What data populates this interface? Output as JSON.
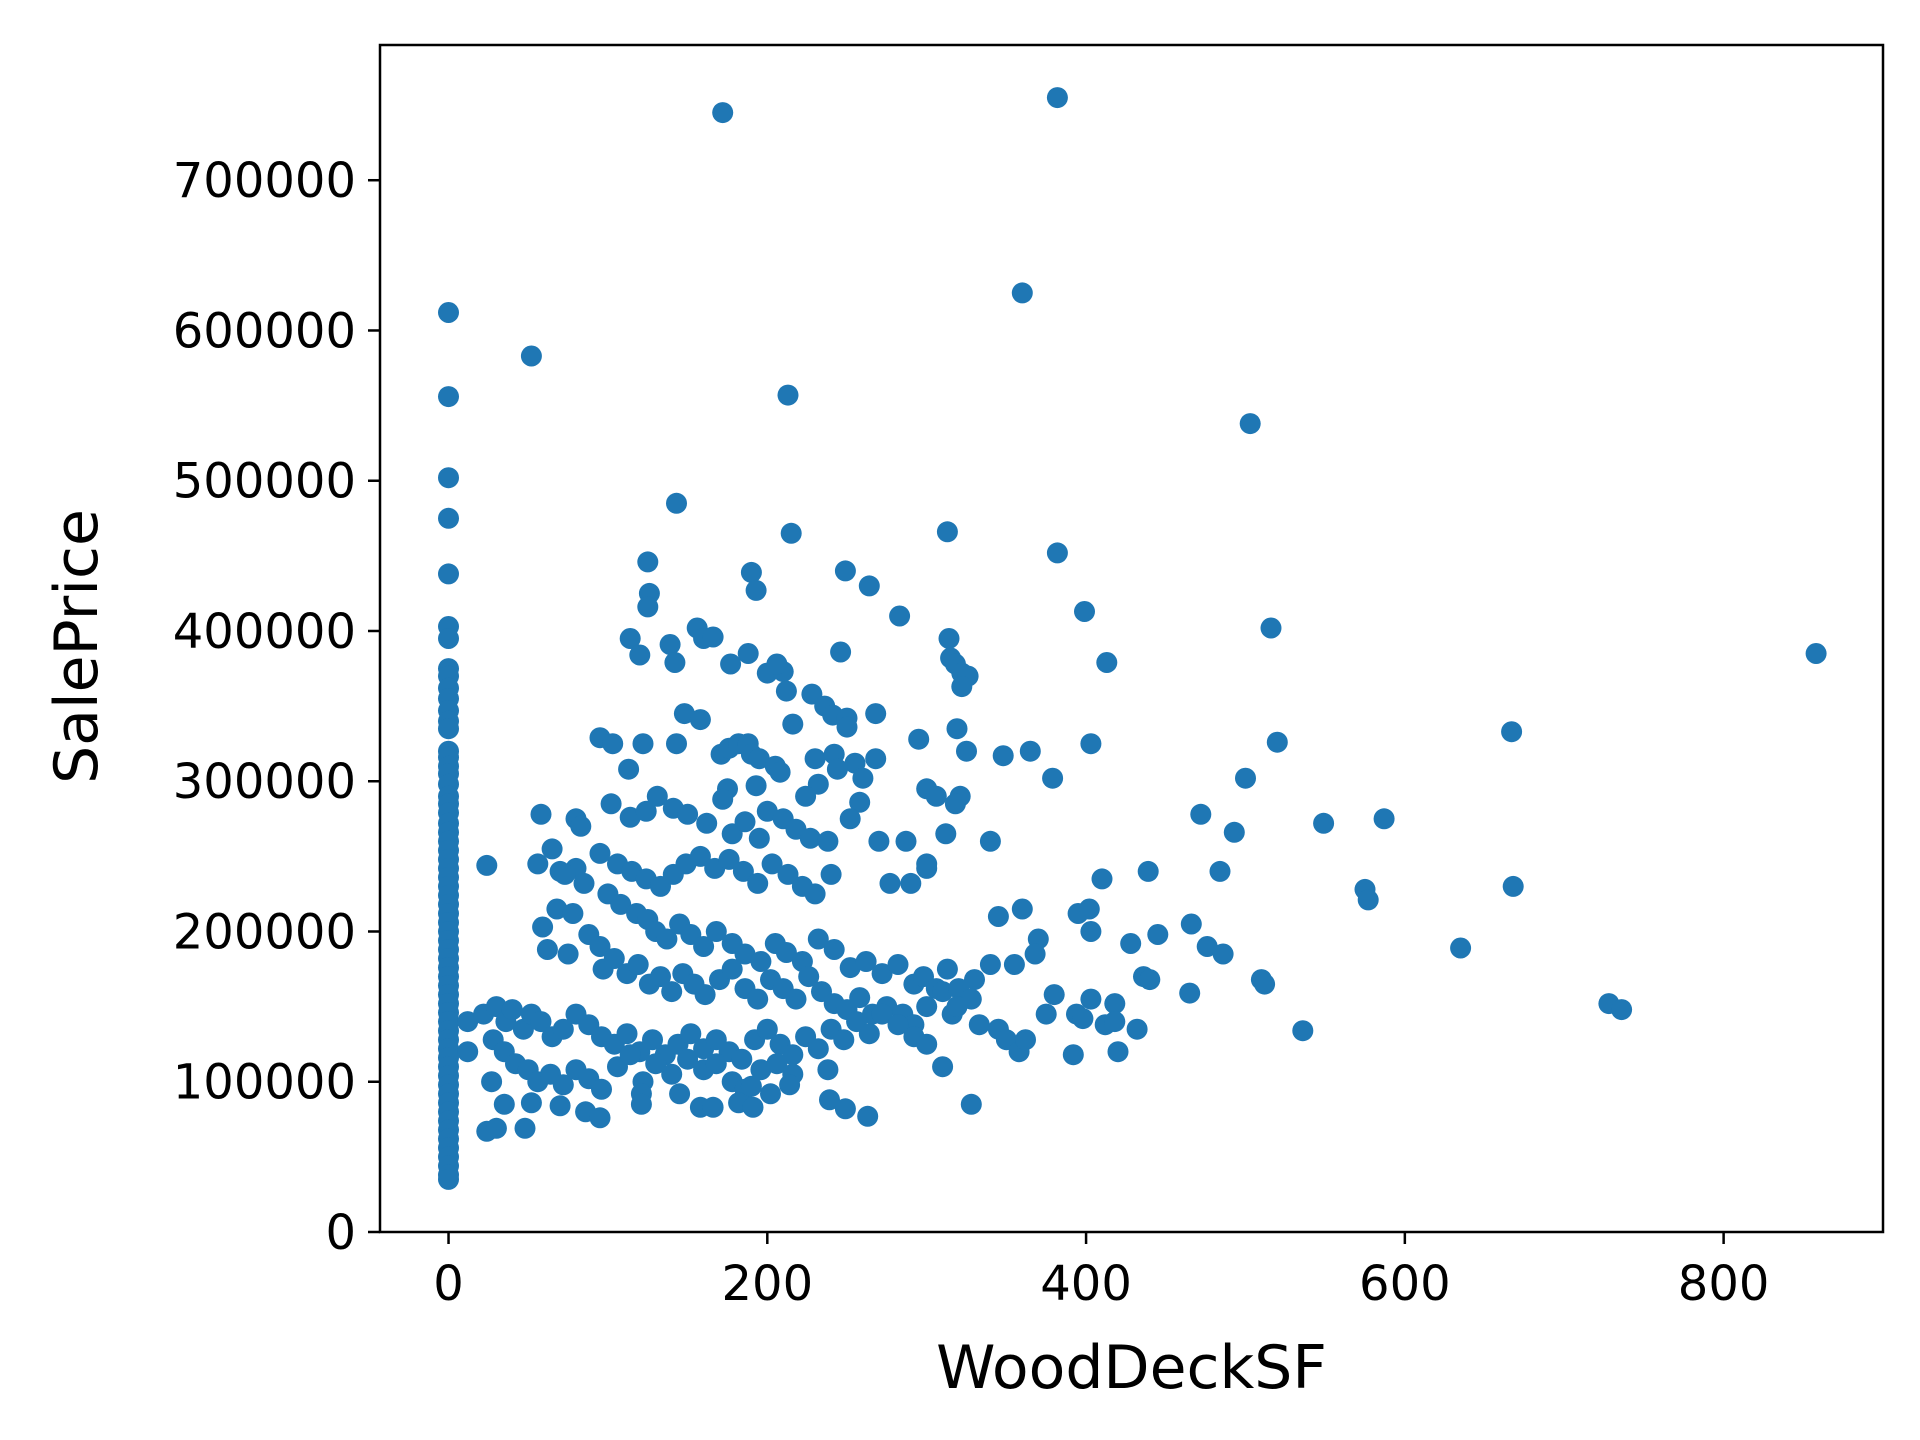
{
  "chart_data": {
    "type": "scatter",
    "title": "",
    "xlabel": "WoodDeckSF",
    "ylabel": "SalePrice",
    "xlim": [
      -43,
      900
    ],
    "ylim": [
      0,
      790000
    ],
    "xticks": [
      0,
      200,
      400,
      600,
      800
    ],
    "yticks": [
      0,
      100000,
      200000,
      300000,
      400000,
      500000,
      600000,
      700000
    ],
    "grid": false,
    "legend": "none",
    "color": "#1f77b4",
    "points": [
      [
        0,
        612000
      ],
      [
        0,
        556000
      ],
      [
        0,
        502000
      ],
      [
        0,
        475000
      ],
      [
        0,
        438000
      ],
      [
        0,
        403000
      ],
      [
        0,
        395000
      ],
      [
        0,
        375000
      ],
      [
        0,
        370000
      ],
      [
        0,
        362000
      ],
      [
        0,
        355000
      ],
      [
        0,
        347000
      ],
      [
        0,
        340000
      ],
      [
        0,
        335000
      ],
      [
        0,
        320000
      ],
      [
        0,
        316000
      ],
      [
        0,
        310000
      ],
      [
        0,
        305000
      ],
      [
        0,
        298000
      ],
      [
        0,
        290000
      ],
      [
        0,
        285000
      ],
      [
        0,
        279000
      ],
      [
        0,
        272000
      ],
      [
        0,
        266000
      ],
      [
        0,
        260000
      ],
      [
        0,
        254000
      ],
      [
        0,
        248000
      ],
      [
        0,
        242000
      ],
      [
        0,
        236000
      ],
      [
        0,
        230000
      ],
      [
        0,
        224000
      ],
      [
        0,
        218000
      ],
      [
        0,
        212000
      ],
      [
        0,
        206000
      ],
      [
        0,
        200000
      ],
      [
        0,
        194000
      ],
      [
        0,
        188000
      ],
      [
        0,
        182000
      ],
      [
        0,
        176000
      ],
      [
        0,
        170000
      ],
      [
        0,
        164000
      ],
      [
        0,
        158000
      ],
      [
        0,
        152000
      ],
      [
        0,
        146000
      ],
      [
        0,
        140000
      ],
      [
        0,
        134000
      ],
      [
        0,
        128000
      ],
      [
        0,
        122000
      ],
      [
        0,
        116000
      ],
      [
        0,
        110000
      ],
      [
        0,
        104000
      ],
      [
        0,
        98000
      ],
      [
        0,
        92000
      ],
      [
        0,
        86000
      ],
      [
        0,
        80000
      ],
      [
        0,
        74000
      ],
      [
        0,
        68000
      ],
      [
        0,
        62000
      ],
      [
        0,
        56000
      ],
      [
        0,
        50000
      ],
      [
        0,
        44000
      ],
      [
        0,
        38000
      ],
      [
        0,
        35000
      ],
      [
        172,
        745000
      ],
      [
        382,
        755000
      ],
      [
        360,
        625000
      ],
      [
        52,
        583000
      ],
      [
        213,
        557000
      ],
      [
        503,
        538000
      ],
      [
        143,
        485000
      ],
      [
        215,
        465000
      ],
      [
        313,
        466000
      ],
      [
        382,
        452000
      ],
      [
        125,
        446000
      ],
      [
        190,
        439000
      ],
      [
        249,
        440000
      ],
      [
        264,
        430000
      ],
      [
        126,
        425000
      ],
      [
        193,
        427000
      ],
      [
        125,
        416000
      ],
      [
        283,
        410000
      ],
      [
        399,
        413000
      ],
      [
        516,
        402000
      ],
      [
        114,
        395000
      ],
      [
        139,
        391000
      ],
      [
        120,
        384000
      ],
      [
        142,
        379000
      ],
      [
        156,
        402000
      ],
      [
        160,
        395000
      ],
      [
        166,
        396000
      ],
      [
        177,
        378000
      ],
      [
        188,
        385000
      ],
      [
        200,
        372000
      ],
      [
        210,
        373000
      ],
      [
        206,
        378000
      ],
      [
        212,
        360000
      ],
      [
        228,
        358000
      ],
      [
        314,
        395000
      ],
      [
        315,
        382000
      ],
      [
        318,
        378000
      ],
      [
        322,
        372000
      ],
      [
        326,
        370000
      ],
      [
        322,
        363000
      ],
      [
        413,
        379000
      ],
      [
        858,
        385000
      ],
      [
        246,
        386000
      ],
      [
        148,
        345000
      ],
      [
        158,
        341000
      ],
      [
        236,
        350000
      ],
      [
        241,
        344000
      ],
      [
        250,
        342000
      ],
      [
        250,
        336000
      ],
      [
        268,
        345000
      ],
      [
        216,
        338000
      ],
      [
        319,
        335000
      ],
      [
        295,
        328000
      ],
      [
        325,
        320000
      ],
      [
        348,
        317000
      ],
      [
        365,
        320000
      ],
      [
        403,
        325000
      ],
      [
        379,
        302000
      ],
      [
        500,
        302000
      ],
      [
        520,
        326000
      ],
      [
        667,
        333000
      ],
      [
        95,
        329000
      ],
      [
        103,
        325000
      ],
      [
        113,
        308000
      ],
      [
        122,
        325000
      ],
      [
        143,
        325000
      ],
      [
        171,
        318000
      ],
      [
        176,
        322000
      ],
      [
        182,
        325000
      ],
      [
        188,
        325000
      ],
      [
        190,
        318000
      ],
      [
        195,
        315000
      ],
      [
        205,
        310000
      ],
      [
        208,
        306000
      ],
      [
        230,
        315000
      ],
      [
        242,
        318000
      ],
      [
        255,
        312000
      ],
      [
        260,
        302000
      ],
      [
        268,
        315000
      ],
      [
        244,
        308000
      ],
      [
        193,
        297000
      ],
      [
        175,
        295000
      ],
      [
        172,
        288000
      ],
      [
        232,
        298000
      ],
      [
        224,
        290000
      ],
      [
        300,
        295000
      ],
      [
        306,
        290000
      ],
      [
        321,
        290000
      ],
      [
        318,
        285000
      ],
      [
        258,
        286000
      ],
      [
        252,
        275000
      ],
      [
        270,
        260000
      ],
      [
        300,
        245000
      ],
      [
        287,
        260000
      ],
      [
        312,
        265000
      ],
      [
        340,
        260000
      ],
      [
        472,
        278000
      ],
      [
        493,
        266000
      ],
      [
        549,
        272000
      ],
      [
        587,
        275000
      ],
      [
        58,
        278000
      ],
      [
        80,
        275000
      ],
      [
        83,
        270000
      ],
      [
        102,
        285000
      ],
      [
        114,
        276000
      ],
      [
        124,
        280000
      ],
      [
        131,
        290000
      ],
      [
        141,
        282000
      ],
      [
        150,
        278000
      ],
      [
        162,
        272000
      ],
      [
        178,
        265000
      ],
      [
        186,
        273000
      ],
      [
        195,
        262000
      ],
      [
        200,
        280000
      ],
      [
        210,
        275000
      ],
      [
        218,
        268000
      ],
      [
        227,
        262000
      ],
      [
        238,
        260000
      ],
      [
        65,
        255000
      ],
      [
        70,
        240000
      ],
      [
        80,
        242000
      ],
      [
        95,
        252000
      ],
      [
        106,
        245000
      ],
      [
        115,
        240000
      ],
      [
        124,
        235000
      ],
      [
        133,
        230000
      ],
      [
        141,
        238000
      ],
      [
        149,
        245000
      ],
      [
        158,
        250000
      ],
      [
        167,
        242000
      ],
      [
        176,
        248000
      ],
      [
        185,
        240000
      ],
      [
        194,
        232000
      ],
      [
        203,
        245000
      ],
      [
        213,
        238000
      ],
      [
        222,
        230000
      ],
      [
        230,
        225000
      ],
      [
        240,
        238000
      ],
      [
        290,
        232000
      ],
      [
        277,
        232000
      ],
      [
        300,
        242000
      ],
      [
        410,
        235000
      ],
      [
        439,
        240000
      ],
      [
        484,
        240000
      ],
      [
        575,
        228000
      ],
      [
        577,
        221000
      ],
      [
        668,
        230000
      ],
      [
        24,
        244000
      ],
      [
        56,
        245000
      ],
      [
        73,
        238000
      ],
      [
        85,
        232000
      ],
      [
        100,
        225000
      ],
      [
        108,
        218000
      ],
      [
        118,
        212000
      ],
      [
        125,
        208000
      ],
      [
        130,
        200000
      ],
      [
        137,
        195000
      ],
      [
        145,
        205000
      ],
      [
        152,
        198000
      ],
      [
        160,
        190000
      ],
      [
        168,
        200000
      ],
      [
        178,
        192000
      ],
      [
        186,
        185000
      ],
      [
        196,
        180000
      ],
      [
        205,
        192000
      ],
      [
        212,
        186000
      ],
      [
        222,
        180000
      ],
      [
        232,
        195000
      ],
      [
        242,
        188000
      ],
      [
        252,
        176000
      ],
      [
        262,
        180000
      ],
      [
        272,
        172000
      ],
      [
        282,
        178000
      ],
      [
        292,
        165000
      ],
      [
        298,
        170000
      ],
      [
        306,
        162000
      ],
      [
        313,
        175000
      ],
      [
        330,
        168000
      ],
      [
        345,
        210000
      ],
      [
        360,
        215000
      ],
      [
        370,
        195000
      ],
      [
        395,
        212000
      ],
      [
        402,
        215000
      ],
      [
        403,
        200000
      ],
      [
        428,
        192000
      ],
      [
        445,
        198000
      ],
      [
        466,
        205000
      ],
      [
        476,
        190000
      ],
      [
        486,
        185000
      ],
      [
        635,
        189000
      ],
      [
        59,
        203000
      ],
      [
        62,
        188000
      ],
      [
        75,
        185000
      ],
      [
        68,
        215000
      ],
      [
        78,
        212000
      ],
      [
        88,
        198000
      ],
      [
        95,
        190000
      ],
      [
        97,
        175000
      ],
      [
        104,
        182000
      ],
      [
        112,
        172000
      ],
      [
        119,
        178000
      ],
      [
        126,
        165000
      ],
      [
        133,
        170000
      ],
      [
        140,
        160000
      ],
      [
        147,
        172000
      ],
      [
        154,
        165000
      ],
      [
        161,
        158000
      ],
      [
        170,
        168000
      ],
      [
        178,
        175000
      ],
      [
        186,
        162000
      ],
      [
        194,
        155000
      ],
      [
        202,
        168000
      ],
      [
        210,
        162000
      ],
      [
        218,
        155000
      ],
      [
        226,
        170000
      ],
      [
        234,
        160000
      ],
      [
        242,
        152000
      ],
      [
        250,
        148000
      ],
      [
        258,
        156000
      ],
      [
        266,
        145000
      ],
      [
        275,
        150000
      ],
      [
        285,
        145000
      ],
      [
        292,
        138000
      ],
      [
        300,
        150000
      ],
      [
        310,
        160000
      ],
      [
        320,
        162000
      ],
      [
        328,
        155000
      ],
      [
        340,
        178000
      ],
      [
        355,
        178000
      ],
      [
        368,
        185000
      ],
      [
        375,
        145000
      ],
      [
        380,
        158000
      ],
      [
        394,
        145000
      ],
      [
        403,
        155000
      ],
      [
        412,
        138000
      ],
      [
        418,
        152000
      ],
      [
        436,
        170000
      ],
      [
        440,
        168000
      ],
      [
        465,
        159000
      ],
      [
        510,
        168000
      ],
      [
        512,
        165000
      ],
      [
        536,
        134000
      ],
      [
        728,
        152000
      ],
      [
        736,
        148000
      ],
      [
        12,
        140000
      ],
      [
        22,
        145000
      ],
      [
        30,
        150000
      ],
      [
        36,
        140000
      ],
      [
        40,
        148000
      ],
      [
        47,
        135000
      ],
      [
        52,
        145000
      ],
      [
        58,
        140000
      ],
      [
        65,
        130000
      ],
      [
        72,
        135000
      ],
      [
        80,
        145000
      ],
      [
        88,
        138000
      ],
      [
        96,
        130000
      ],
      [
        104,
        125000
      ],
      [
        112,
        132000
      ],
      [
        120,
        120000
      ],
      [
        128,
        128000
      ],
      [
        136,
        118000
      ],
      [
        144,
        125000
      ],
      [
        152,
        132000
      ],
      [
        160,
        122000
      ],
      [
        168,
        128000
      ],
      [
        176,
        120000
      ],
      [
        184,
        115000
      ],
      [
        192,
        128000
      ],
      [
        200,
        135000
      ],
      [
        208,
        125000
      ],
      [
        216,
        118000
      ],
      [
        224,
        130000
      ],
      [
        232,
        122000
      ],
      [
        240,
        135000
      ],
      [
        248,
        128000
      ],
      [
        256,
        140000
      ],
      [
        264,
        132000
      ],
      [
        272,
        145000
      ],
      [
        282,
        138000
      ],
      [
        292,
        130000
      ],
      [
        300,
        125000
      ],
      [
        316,
        145000
      ],
      [
        319,
        150000
      ],
      [
        333,
        138000
      ],
      [
        345,
        135000
      ],
      [
        350,
        128000
      ],
      [
        358,
        120000
      ],
      [
        362,
        128000
      ],
      [
        392,
        118000
      ],
      [
        398,
        142000
      ],
      [
        418,
        140000
      ],
      [
        420,
        120000
      ],
      [
        432,
        135000
      ],
      [
        12,
        120000
      ],
      [
        28,
        128000
      ],
      [
        35,
        120000
      ],
      [
        42,
        112000
      ],
      [
        50,
        108000
      ],
      [
        56,
        100000
      ],
      [
        64,
        105000
      ],
      [
        72,
        98000
      ],
      [
        80,
        108000
      ],
      [
        88,
        102000
      ],
      [
        96,
        95000
      ],
      [
        106,
        110000
      ],
      [
        114,
        118000
      ],
      [
        122,
        100000
      ],
      [
        130,
        112000
      ],
      [
        140,
        105000
      ],
      [
        150,
        115000
      ],
      [
        160,
        108000
      ],
      [
        168,
        112000
      ],
      [
        178,
        100000
      ],
      [
        186,
        95000
      ],
      [
        196,
        108000
      ],
      [
        206,
        112000
      ],
      [
        216,
        105000
      ],
      [
        238,
        108000
      ],
      [
        24,
        67000
      ],
      [
        30,
        69000
      ],
      [
        27,
        100000
      ],
      [
        35,
        85000
      ],
      [
        48,
        69000
      ],
      [
        52,
        86000
      ],
      [
        70,
        84000
      ],
      [
        86,
        80000
      ],
      [
        95,
        76000
      ],
      [
        121,
        92000
      ],
      [
        121,
        85000
      ],
      [
        145,
        92000
      ],
      [
        158,
        83000
      ],
      [
        166,
        83000
      ],
      [
        182,
        86000
      ],
      [
        191,
        83000
      ],
      [
        190,
        97000
      ],
      [
        202,
        92000
      ],
      [
        214,
        98000
      ],
      [
        239,
        88000
      ],
      [
        249,
        82000
      ],
      [
        263,
        77000
      ],
      [
        310,
        110000
      ],
      [
        328,
        85000
      ]
    ]
  }
}
